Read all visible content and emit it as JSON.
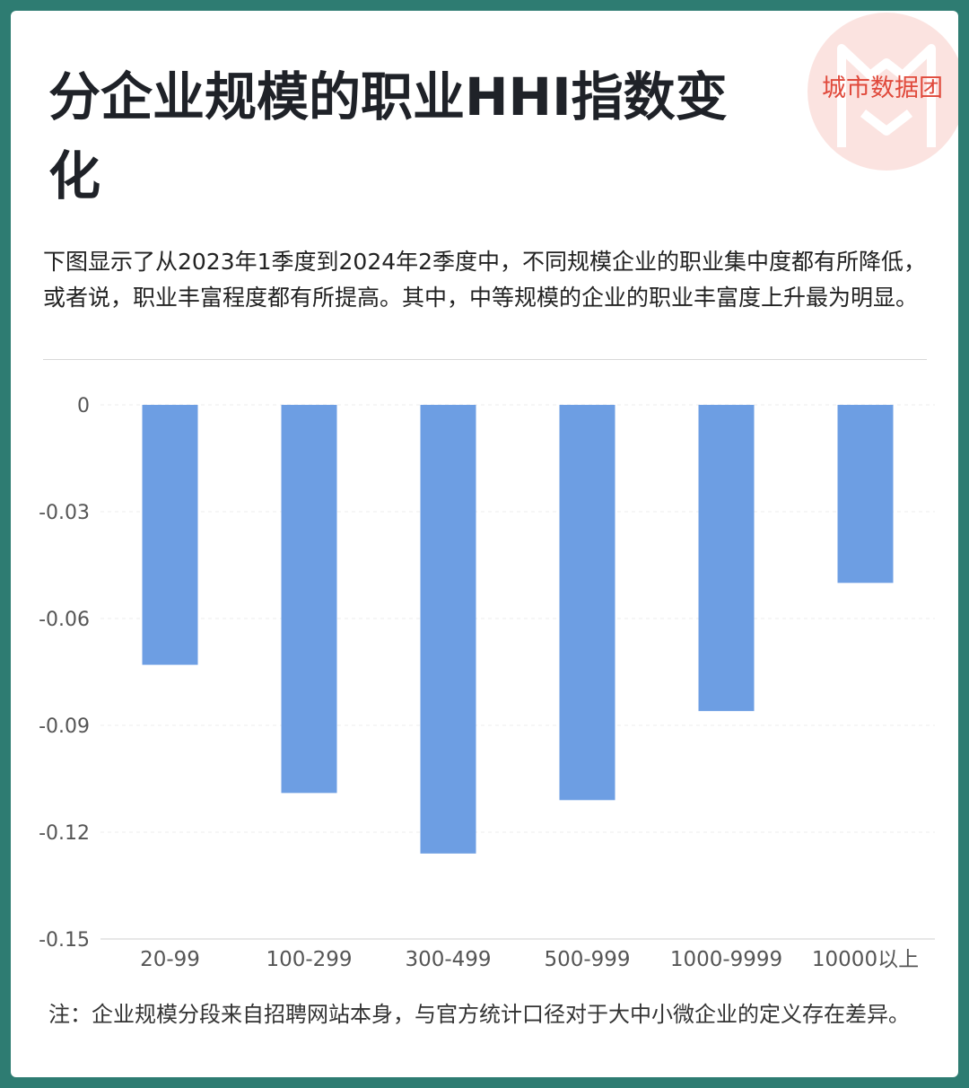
{
  "brand": "城市数据团",
  "title": "分企业规模的职业HHI指数变化",
  "description": "下图显示了从2023年1季度到2024年2季度中，不同规模企业的职业集中度都有所降低，或者说，职业丰富程度都有所提高。其中，中等规模的企业的职业丰富度上升最为明显。",
  "note": "注：企业规模分段来自招聘网站本身，与官方统计口径对于大中小微企业的定义存在差异。",
  "colors": {
    "bar": "#6d9ee3",
    "background": "#2e7c72",
    "brand": "#e04a3c"
  },
  "chart_data": {
    "type": "bar",
    "categories": [
      "20-99",
      "100-299",
      "300-499",
      "500-999",
      "1000-9999",
      "10000以上"
    ],
    "values": [
      -0.073,
      -0.109,
      -0.126,
      -0.111,
      -0.086,
      -0.05
    ],
    "yticks": [
      "0",
      "-0.03",
      "-0.06",
      "-0.09",
      "-0.12",
      "-0.15"
    ],
    "ylim": [
      -0.15,
      0
    ],
    "grid": true,
    "legend": "none"
  }
}
